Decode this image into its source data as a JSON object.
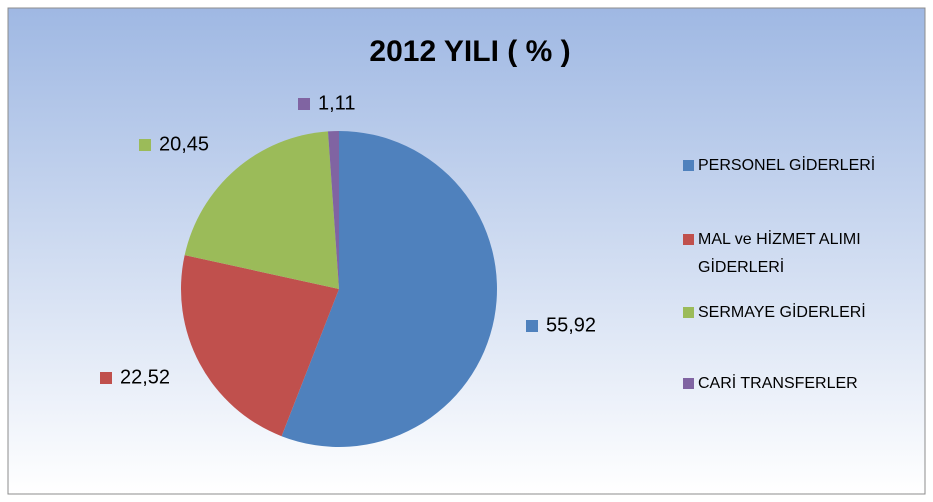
{
  "chart_data": {
    "type": "pie",
    "title": "2012 YILI  ( %  )",
    "categories": [
      "PERSONEL GİDERLERİ",
      "MAL ve HİZMET ALIMI GİDERLERİ",
      "SERMAYE GİDERLERİ",
      "CARİ TRANSFERLER"
    ],
    "values": [
      55.92,
      22.52,
      20.45,
      1.11
    ],
    "value_labels": [
      "55,92",
      "22,52",
      "20,45",
      "1,11"
    ],
    "colors": [
      "#4f81bd",
      "#c0504d",
      "#9bbb59",
      "#8064a2"
    ],
    "legend": "right"
  }
}
